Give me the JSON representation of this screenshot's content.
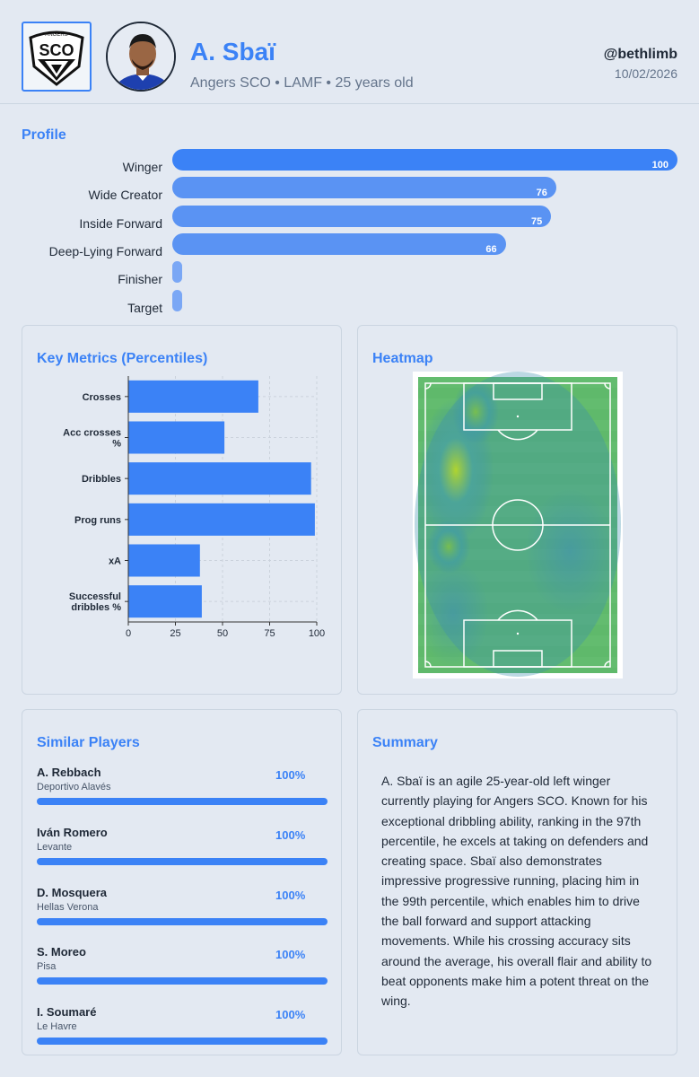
{
  "header": {
    "player_name": "A. Sbaï",
    "meta": "Angers SCO • LAMF • 25 years old",
    "handle": "@bethlimb",
    "date": "10/02/2026",
    "club_logo_text": "SCO",
    "club_logo_top": "ANGERS"
  },
  "profile": {
    "title": "Profile",
    "roles": [
      {
        "label": "Winger",
        "value": 100,
        "value_label": "100"
      },
      {
        "label": "Wide Creator",
        "value": 76,
        "value_label": "76"
      },
      {
        "label": "Inside Forward",
        "value": 75,
        "value_label": "75"
      },
      {
        "label": "Deep-Lying Forward",
        "value": 66,
        "value_label": "66"
      },
      {
        "label": "Finisher",
        "value": 0,
        "value_label": ""
      },
      {
        "label": "Target",
        "value": 0,
        "value_label": ""
      }
    ]
  },
  "key_metrics": {
    "title": "Key Metrics (Percentiles)"
  },
  "chart_data": {
    "type": "bar",
    "orientation": "horizontal",
    "categories": [
      "Crosses",
      "Acc crosses %",
      "Dribbles",
      "Prog runs",
      "xA",
      "Successful dribbles %"
    ],
    "category_lines": [
      [
        "Crosses"
      ],
      [
        "Acc crosses",
        "%"
      ],
      [
        "Dribbles"
      ],
      [
        "Prog runs"
      ],
      [
        "xA"
      ],
      [
        "Successful",
        "dribbles %"
      ]
    ],
    "values": [
      69,
      51,
      97,
      99,
      38,
      39
    ],
    "xlim": [
      0,
      100
    ],
    "xticks": [
      "0",
      "25",
      "50",
      "75",
      "100"
    ],
    "grid": true,
    "color": "#3b82f6"
  },
  "heatmap": {
    "title": "Heatmap"
  },
  "similar": {
    "title": "Similar Players",
    "players": [
      {
        "name": "A. Rebbach",
        "club": "Deportivo Alavés",
        "pct": "100%"
      },
      {
        "name": "Iván Romero",
        "club": "Levante",
        "pct": "100%"
      },
      {
        "name": "D. Mosquera",
        "club": "Hellas Verona",
        "pct": "100%"
      },
      {
        "name": "S. Moreo",
        "club": "Pisa",
        "pct": "100%"
      },
      {
        "name": "I. Soumaré",
        "club": "Le Havre",
        "pct": "100%"
      }
    ]
  },
  "summary": {
    "title": "Summary",
    "text": "A. Sbaï is an agile 25-year-old left winger currently playing for Angers SCO. Known for his exceptional dribbling ability, ranking in the 97th percentile, he excels at taking on defenders and creating space. Sbaï also demonstrates impressive progressive running, placing him in the 99th percentile, which enables him to drive the ball forward and support attacking movements. While his crossing accuracy sits around the average, his overall flair and ability to beat opponents make him a potent threat on the wing."
  },
  "colors": {
    "accent": "#3b82f6",
    "background": "#e3e9f2",
    "pitch": "#5fb96b"
  }
}
